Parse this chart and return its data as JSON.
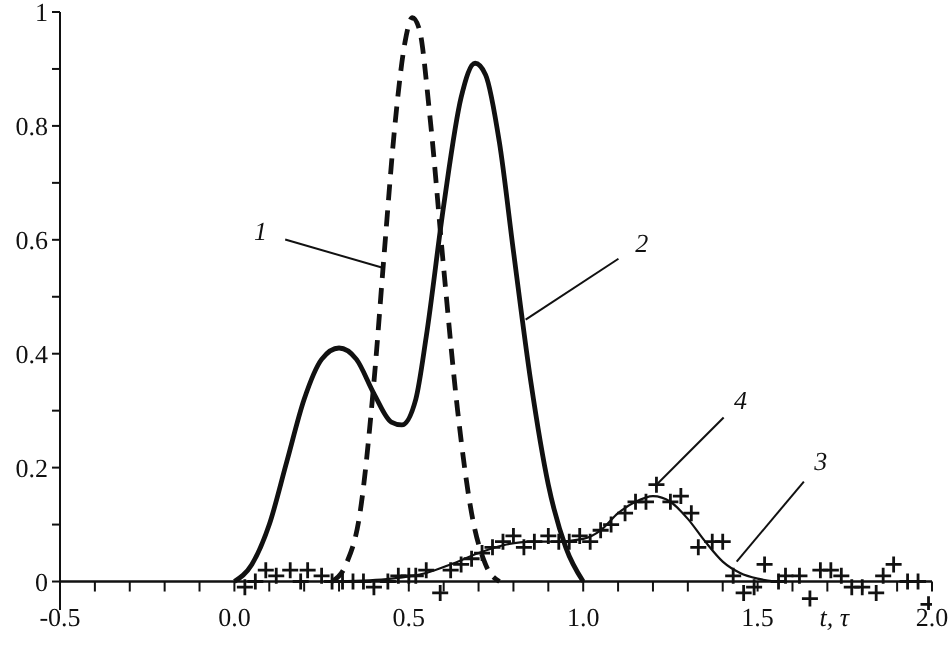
{
  "chart_data": {
    "type": "line",
    "xlabel": "t, τ",
    "xlim": [
      -0.5,
      2.0
    ],
    "ylim": [
      -0.05,
      1
    ],
    "xticks": [
      -0.5,
      {
        "value": -0.4,
        "label": null
      },
      {
        "value": -0.3,
        "label": null
      },
      {
        "value": -0.2,
        "label": null
      },
      {
        "value": -0.1,
        "label": null
      },
      {
        "value": 0,
        "label": "0.0"
      },
      {
        "value": 0.1,
        "label": null
      },
      {
        "value": 0.2,
        "label": null
      },
      {
        "value": 0.3,
        "label": null
      },
      {
        "value": 0.4,
        "label": null
      },
      0.5,
      {
        "value": 0.6,
        "label": null
      },
      {
        "value": 0.7,
        "label": null
      },
      {
        "value": 0.8,
        "label": null
      },
      {
        "value": 0.9,
        "label": null
      },
      {
        "value": 1,
        "label": "1.0"
      },
      {
        "value": 1.1,
        "label": null
      },
      {
        "value": 1.2,
        "label": null
      },
      {
        "value": 1.3,
        "label": null
      },
      {
        "value": 1.4,
        "label": null
      },
      1.5,
      {
        "value": 1.6,
        "label": null
      },
      {
        "value": 1.7,
        "label": null
      },
      {
        "value": 1.8,
        "label": null
      },
      {
        "value": 1.9,
        "label": null
      },
      {
        "value": 2,
        "label": "2.0"
      }
    ],
    "yticks": [
      0,
      {
        "value": 0.1,
        "label": null
      },
      0.2,
      {
        "value": 0.3,
        "label": null
      },
      0.4,
      {
        "value": 0.5,
        "label": null
      },
      0.6,
      {
        "value": 0.7,
        "label": null
      },
      0.8,
      {
        "value": 0.9,
        "label": null
      },
      1
    ],
    "grid": false,
    "legend": false,
    "series": [
      {
        "color": "#111111",
        "line_style": "dashed",
        "marker": "none",
        "x": [
          0.28,
          0.32,
          0.36,
          0.4,
          0.43,
          0.46,
          0.49,
          0.51,
          0.53,
          0.56,
          0.6,
          0.64,
          0.68,
          0.72,
          0.76
        ],
        "values": [
          0,
          0.03,
          0.12,
          0.35,
          0.58,
          0.8,
          0.95,
          0.99,
          0.97,
          0.82,
          0.55,
          0.3,
          0.12,
          0.03,
          0
        ]
      },
      {
        "color": "#111111",
        "line_style": "solid",
        "marker": "none",
        "x": [
          0,
          0.05,
          0.1,
          0.15,
          0.2,
          0.25,
          0.3,
          0.35,
          0.4,
          0.45,
          0.48,
          0.52,
          0.55,
          0.6,
          0.65,
          0.69,
          0.72,
          0.76,
          0.8,
          0.85,
          0.9,
          0.95,
          1.0
        ],
        "values": [
          0,
          0.03,
          0.1,
          0.21,
          0.32,
          0.39,
          0.41,
          0.39,
          0.33,
          0.28,
          0.275,
          0.32,
          0.43,
          0.66,
          0.85,
          0.91,
          0.89,
          0.77,
          0.58,
          0.35,
          0.17,
          0.06,
          0
        ]
      },
      {
        "color": "#111111",
        "line_style": "solid",
        "marker": "none",
        "x": [
          0.3,
          0.45,
          0.55,
          0.62,
          0.7,
          0.78,
          0.85,
          0.92,
          1.0,
          1.05,
          1.1,
          1.15,
          1.2,
          1.25,
          1.3,
          1.35,
          1.4,
          1.45,
          1.5,
          1.55
        ],
        "values": [
          0,
          0.005,
          0.015,
          0.03,
          0.05,
          0.065,
          0.07,
          0.07,
          0.075,
          0.09,
          0.12,
          0.14,
          0.15,
          0.14,
          0.11,
          0.07,
          0.035,
          0.015,
          0.005,
          0
        ]
      },
      {
        "type": "scatter",
        "color": "#111111",
        "marker": "cross",
        "x": [
          0.03,
          0.06,
          0.09,
          0.12,
          0.16,
          0.19,
          0.21,
          0.25,
          0.28,
          0.31,
          0.34,
          0.37,
          0.4,
          0.44,
          0.47,
          0.5,
          0.52,
          0.55,
          0.59,
          0.62,
          0.65,
          0.68,
          0.71,
          0.74,
          0.77,
          0.8,
          0.83,
          0.86,
          0.9,
          0.93,
          0.96,
          0.99,
          1.02,
          1.05,
          1.08,
          1.12,
          1.15,
          1.18,
          1.21,
          1.25,
          1.28,
          1.31,
          1.33,
          1.37,
          1.4,
          1.43,
          1.46,
          1.49,
          1.52,
          1.56,
          1.58,
          1.62,
          1.65,
          1.68,
          1.71,
          1.74,
          1.77,
          1.8,
          1.84,
          1.86,
          1.89,
          1.93,
          1.96,
          1.99
        ],
        "values": [
          -0.01,
          0,
          0.02,
          0.01,
          0.02,
          0,
          0.02,
          0.01,
          0,
          0,
          0,
          0,
          -0.01,
          0,
          0.01,
          0.01,
          0.01,
          0.02,
          -0.02,
          0.02,
          0.03,
          0.04,
          0.05,
          0.06,
          0.07,
          0.08,
          0.06,
          0.07,
          0.08,
          0.07,
          0.07,
          0.08,
          0.07,
          0.09,
          0.1,
          0.12,
          0.14,
          0.14,
          0.17,
          0.14,
          0.15,
          0.12,
          0.06,
          0.07,
          0.07,
          0.01,
          -0.02,
          -0.01,
          0.03,
          0,
          0.01,
          0.01,
          -0.03,
          0.02,
          0.02,
          0.01,
          -0.01,
          -0.01,
          -0.02,
          0.01,
          0.03,
          0,
          0,
          -0.04
        ]
      }
    ],
    "annotations": [
      {
        "text": "1",
        "x": 0.43,
        "y": 0.55
      },
      {
        "text": "2",
        "x": 0.835,
        "y": 0.46
      },
      {
        "text": "3",
        "x": 1.44,
        "y": 0.035
      },
      {
        "text": "4",
        "x": 1.21,
        "y": 0.17
      }
    ]
  }
}
